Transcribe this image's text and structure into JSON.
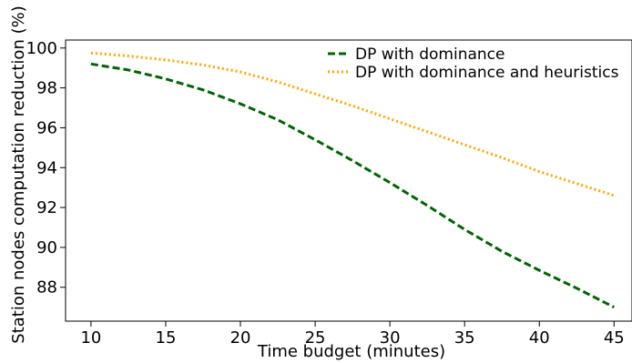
{
  "chart_data": {
    "type": "line",
    "title": "",
    "xlabel": "Time budget (minutes)",
    "ylabel": "Station nodes computation reduction (%)",
    "xlim": [
      8.3,
      46.2
    ],
    "ylim": [
      86.3,
      100.4
    ],
    "xticks": [
      10,
      15,
      20,
      25,
      30,
      35,
      40,
      45
    ],
    "yticks": [
      88,
      90,
      92,
      94,
      96,
      98,
      100
    ],
    "grid": false,
    "legend_position": "top-right",
    "x": [
      10,
      12.5,
      15,
      17.5,
      20,
      22.5,
      25,
      27.5,
      30,
      32.5,
      35,
      37.5,
      40,
      42.5,
      45
    ],
    "series": [
      {
        "name": "DP with dominance",
        "color": "#006400",
        "style": "dashed",
        "values": [
          99.2,
          98.9,
          98.45,
          97.9,
          97.2,
          96.4,
          95.4,
          94.35,
          93.25,
          92.1,
          90.9,
          89.8,
          88.85,
          87.95,
          87.0
        ]
      },
      {
        "name": "DP with dominance and heuristics",
        "color": "#FFA500",
        "style": "dotted",
        "values": [
          99.75,
          99.6,
          99.4,
          99.15,
          98.8,
          98.3,
          97.7,
          97.1,
          96.45,
          95.8,
          95.15,
          94.5,
          93.8,
          93.2,
          92.6
        ]
      }
    ]
  }
}
